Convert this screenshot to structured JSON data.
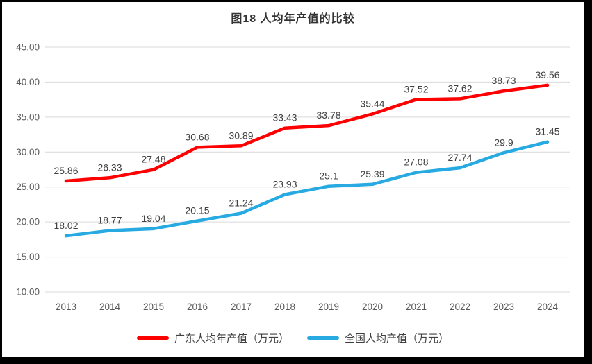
{
  "frame": {
    "border_color": "#000000",
    "background": "#ffffff"
  },
  "chart_data": {
    "type": "line",
    "title": "图18 人均年产值的比较",
    "xlabel": "",
    "ylabel": "",
    "x": [
      "2013",
      "2014",
      "2015",
      "2016",
      "2017",
      "2018",
      "2019",
      "2020",
      "2021",
      "2022",
      "2023",
      "2024"
    ],
    "y_ticks": [
      "45.00",
      "40.00",
      "35.00",
      "30.00",
      "25.00",
      "20.00",
      "15.00",
      "10.00"
    ],
    "ylim": [
      10,
      45
    ],
    "grid": "horizontal",
    "gridline_color": "#d9d9d9",
    "tick_color": "#595959",
    "data_label_color": "#404040",
    "legend_position": "bottom",
    "series": [
      {
        "name": "广东人均年产值（万元）",
        "color": "#ff0000",
        "values": [
          25.86,
          26.33,
          27.48,
          30.68,
          30.89,
          33.43,
          33.78,
          35.44,
          37.52,
          37.62,
          38.73,
          39.56
        ],
        "labels": [
          "25.86",
          "26.33",
          "27.48",
          "30.68",
          "30.89",
          "33.43",
          "33.78",
          "35.44",
          "37.52",
          "37.62",
          "38.73",
          "39.56"
        ]
      },
      {
        "name": "全国人均产值（万元）",
        "color": "#27aae1",
        "values": [
          18.02,
          18.77,
          19.04,
          20.15,
          21.24,
          23.93,
          25.1,
          25.39,
          27.08,
          27.74,
          29.9,
          31.45
        ],
        "labels": [
          "18.02",
          "18.77",
          "19.04",
          "20.15",
          "21.24",
          "23.93",
          "25.1",
          "25.39",
          "27.08",
          "27.74",
          "29.9",
          "31.45"
        ]
      }
    ]
  }
}
